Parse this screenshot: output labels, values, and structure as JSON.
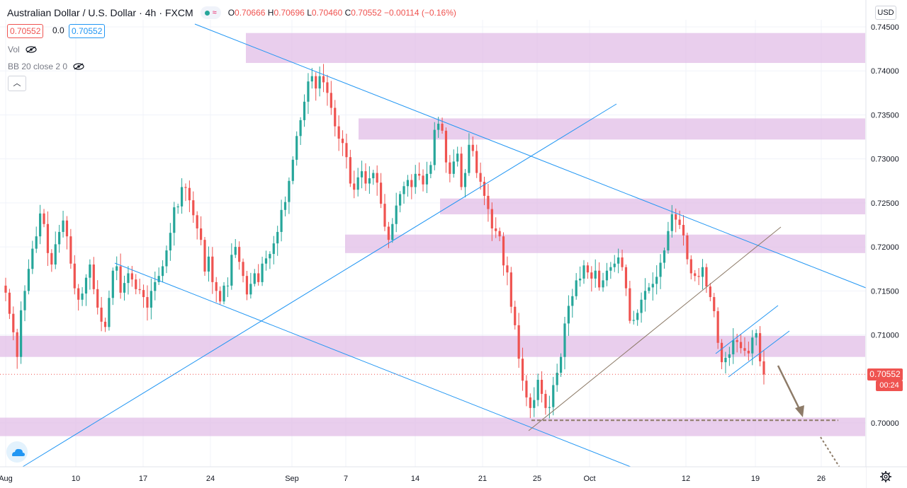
{
  "header": {
    "symbol_title": "Australian Dollar / U.S. Dollar",
    "interval": "4h",
    "exchange": "FXCM",
    "ohlc": {
      "open_label": "O",
      "open": "0.70666",
      "high_label": "H",
      "high": "0.70696",
      "low_label": "L",
      "low": "0.70460",
      "close_label": "C",
      "close": "0.70552",
      "change": "−0.00114 (−0.16%)"
    },
    "bid": "0.70552",
    "spread": "0.0",
    "ask": "0.70552",
    "badge_icon": "wave-icon"
  },
  "indicators": [
    {
      "label": "Vol"
    },
    {
      "label": "BB 20 close 2 0"
    }
  ],
  "currency_button": "USD",
  "last_price_tag": "0.70552",
  "countdown": "00:24",
  "colors": {
    "up": "#26a69a",
    "down": "#ef5350",
    "zone": "#e1bee7",
    "trendline": "#2196f3",
    "annotation": "#8d7b68"
  },
  "chart_data": {
    "type": "candlestick",
    "ylim": [
      0.6955,
      0.7463
    ],
    "y_ticks": [
      "0.74500",
      "0.74000",
      "0.73500",
      "0.73000",
      "0.72500",
      "0.72000",
      "0.71500",
      "0.71000",
      "0.70000"
    ],
    "x_ticks": [
      "Aug",
      "10",
      "17",
      "24",
      "Sep",
      "7",
      "14",
      "21",
      "25",
      "Oct",
      "12",
      "19",
      "26"
    ],
    "zones": [
      {
        "low": 0.7409,
        "high": 0.7443
      },
      {
        "low": 0.7322,
        "high": 0.7346
      },
      {
        "low": 0.7237,
        "high": 0.7255
      },
      {
        "low": 0.7193,
        "high": 0.7214
      },
      {
        "low": 0.7075,
        "high": 0.7099
      },
      {
        "low": 0.6985,
        "high": 0.7006
      }
    ],
    "support_level": 0.7003,
    "candle_path": [
      [
        0.7148,
        0.7124,
        0.7103,
        0.7075,
        0.7128,
        0.715,
        0.7175,
        0.7198,
        0.7212,
        0.7238,
        0.7226,
        0.7193,
        0.718,
        0.7203,
        0.7217,
        0.723,
        0.7212,
        0.7181,
        0.7153,
        0.714,
        0.7147,
        0.7165,
        0.718,
        0.7152,
        0.7131,
        0.7115,
        0.7109,
        0.7142,
        0.7173,
        0.7178,
        0.7148,
        0.7159,
        0.717,
        0.7163,
        0.7152,
        0.7151,
        0.7143,
        0.7131,
        0.715,
        0.716,
        0.7167,
        0.7178,
        0.7196,
        0.7216,
        0.7245,
        0.7246,
        0.7268,
        0.7267,
        0.7253,
        0.7236,
        0.7221,
        0.7208,
        0.7172,
        0.7189,
        0.716,
        0.715,
        0.7138,
        0.7156,
        0.7156,
        0.7191,
        0.72,
        0.7183,
        0.7167,
        0.7146,
        0.7158,
        0.717,
        0.716,
        0.7181,
        0.7187,
        0.7192,
        0.7204,
        0.7217,
        0.7242,
        0.7251,
        0.7275,
        0.7299,
        0.7326,
        0.7344,
        0.7365,
        0.7388,
        0.7394,
        0.738,
        0.7394,
        0.7387,
        0.7375,
        0.7358,
        0.7337,
        0.7323,
        0.7318,
        0.7302,
        0.7272,
        0.7265,
        0.7279,
        0.7286,
        0.7272,
        0.7278,
        0.7284,
        0.7273,
        0.7249,
        0.7223,
        0.7208,
        0.7226,
        0.7247,
        0.726,
        0.7269,
        0.7276,
        0.7268,
        0.7283,
        0.7281,
        0.7271,
        0.7283,
        0.7293,
        0.7333,
        0.734,
        0.7332,
        0.7296,
        0.7283,
        0.7297,
        0.7306,
        0.7268,
        0.7284,
        0.7316,
        0.7309,
        0.7284,
        0.7274,
        0.7258,
        0.7243,
        0.7221,
        0.7218,
        0.7212,
        0.7179,
        0.7171,
        0.7132,
        0.7111,
        0.7073,
        0.7048,
        0.7029,
        0.7017,
        0.7026,
        0.7049,
        0.7033,
        0.7017,
        0.7018,
        0.7043,
        0.7057,
        0.7075,
        0.7113,
        0.7133,
        0.7144,
        0.7162,
        0.7164,
        0.7179,
        0.7171,
        0.7164,
        0.7173,
        0.7154,
        0.7162,
        0.7173,
        0.7177,
        0.7181,
        0.7188,
        0.7177,
        0.7153,
        0.7116,
        0.7117,
        0.7125,
        0.714,
        0.715,
        0.7154,
        0.7158,
        0.7166,
        0.7182,
        0.7196,
        0.7218,
        0.7237,
        0.7231,
        0.7225,
        0.7213,
        0.7186,
        0.717,
        0.7167,
        0.7166,
        0.7177,
        0.7155,
        0.7143,
        0.7127,
        0.7091,
        0.7069,
        0.7074,
        0.7078,
        0.7094,
        0.7092,
        0.7085,
        0.7082,
        0.7079,
        0.7097,
        0.7102,
        0.707,
        0.7055
      ]
    ]
  }
}
